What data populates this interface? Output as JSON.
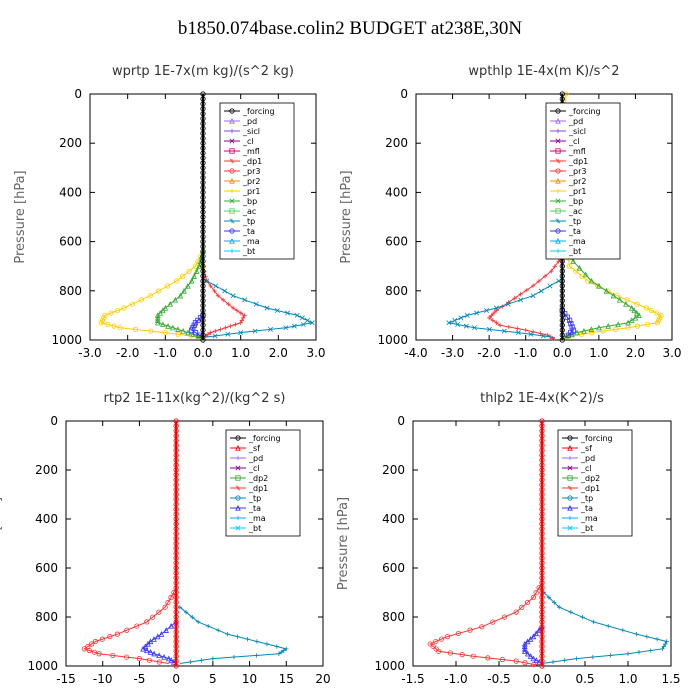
{
  "title": "b1850.074base.colin2  BUDGET at238E,30N",
  "colors": {
    "_forcing": "#000000",
    "_sf": "#ff0000",
    "_pd": "#9966ff",
    "_sicl": "#8844cc",
    "_cl": "#880088",
    "_mfl": "#cc0066",
    "_dp2": "#33aa33",
    "_dp1": "#ff3333",
    "_pr3": "#ff3333",
    "_pr2": "#ff8800",
    "_pr1": "#ffcc00",
    "_bp": "#33aa33",
    "_ac": "#55cc55",
    "_tp": "#0088bb",
    "_ta": "#3333ff",
    "_ma": "#00aaff",
    "_bt": "#00ccff"
  },
  "chart_data": [
    {
      "type": "line",
      "title": "wprtp   1E-7x(m kg)/(s^2 kg)",
      "ylabel": "Pressure [hPa]",
      "xlim": [
        -3.0,
        3.0
      ],
      "ylim": [
        1000,
        0
      ],
      "xticks": [
        "-3.0",
        "-2.0",
        "-1.0",
        "0.0",
        "1.0",
        "2.0",
        "3.0"
      ],
      "yticks": [
        "0",
        "200",
        "400",
        "600",
        "800",
        "1000"
      ],
      "legend": [
        "_forcing",
        "_pd",
        "_sicl",
        "_cl",
        "_mfl",
        "_dp1",
        "_pr3",
        "_pr2",
        "_pr1",
        "_bp",
        "_ac",
        "_tp",
        "_ta",
        "_ma",
        "_bt"
      ],
      "series": [
        {
          "name": "_pr1",
          "p": [
            640,
            700,
            760,
            820,
            870,
            900,
            930,
            950,
            970,
            990
          ],
          "x": [
            0,
            -0.2,
            -0.7,
            -1.4,
            -2.1,
            -2.6,
            -2.7,
            -2.2,
            -1.0,
            0
          ]
        },
        {
          "name": "_bp",
          "p": [
            640,
            700,
            760,
            820,
            870,
            900,
            930,
            950,
            970,
            990
          ],
          "x": [
            0,
            -0.1,
            -0.3,
            -0.6,
            -1.0,
            -1.2,
            -1.2,
            -0.8,
            -0.4,
            0
          ]
        },
        {
          "name": "_dp1",
          "p": [
            700,
            760,
            820,
            870,
            900,
            930,
            950,
            970,
            990
          ],
          "x": [
            0,
            0.1,
            0.4,
            0.8,
            1.1,
            1.0,
            0.6,
            0.2,
            0
          ]
        },
        {
          "name": "_tp",
          "p": [
            760,
            820,
            870,
            900,
            930,
            950,
            970,
            990
          ],
          "x": [
            0.1,
            0.8,
            1.7,
            2.5,
            2.9,
            2.2,
            1.0,
            0
          ]
        },
        {
          "name": "_ta",
          "p": [
            900,
            930,
            960,
            990
          ],
          "x": [
            0,
            -0.2,
            -0.3,
            0
          ]
        },
        {
          "name": "_forcing",
          "p": [
            0,
            200,
            400,
            600,
            800,
            1000
          ],
          "x": [
            0,
            0,
            0,
            0,
            0,
            0
          ]
        }
      ]
    },
    {
      "type": "line",
      "title": "wpthlp   1E-4x(m K)/s^2",
      "ylabel": "Pressure [hPa]",
      "xlim": [
        -4.0,
        3.0
      ],
      "ylim": [
        1000,
        0
      ],
      "xticks": [
        "-4.0",
        "-3.0",
        "-2.0",
        "-1.0",
        "0.0",
        "1.0",
        "2.0",
        "3.0"
      ],
      "yticks": [
        "0",
        "200",
        "400",
        "600",
        "800",
        "1000"
      ],
      "legend": [
        "_forcing",
        "_pd",
        "_sicl",
        "_cl",
        "_mfl",
        "_dp1",
        "_pr3",
        "_pr2",
        "_pr1",
        "_bp",
        "_ac",
        "_tp",
        "_ta",
        "_ma",
        "_bt"
      ],
      "series": [
        {
          "name": "_pr1",
          "p": [
            0,
            300,
            600,
            700,
            760,
            820,
            870,
            900,
            930,
            950,
            970,
            990
          ],
          "x": [
            0.1,
            0.05,
            0.1,
            0.2,
            0.7,
            1.5,
            2.3,
            2.7,
            2.6,
            1.8,
            0.8,
            0
          ]
        },
        {
          "name": "_bp",
          "p": [
            600,
            680,
            760,
            820,
            870,
            900,
            930,
            950,
            970,
            990
          ],
          "x": [
            0,
            0.3,
            0.8,
            1.4,
            1.9,
            2.1,
            1.8,
            1.0,
            0.4,
            0
          ]
        },
        {
          "name": "_dp1",
          "p": [
            660,
            720,
            780,
            830,
            880,
            910,
            940,
            960,
            980,
            1000
          ],
          "x": [
            0,
            -0.3,
            -0.8,
            -1.3,
            -1.8,
            -2.0,
            -1.7,
            -1.0,
            -0.4,
            -0.2
          ]
        },
        {
          "name": "_tp",
          "p": [
            760,
            820,
            870,
            900,
            930,
            950,
            970,
            990
          ],
          "x": [
            -0.1,
            -0.8,
            -1.8,
            -2.6,
            -3.1,
            -2.4,
            -1.2,
            -0.2
          ]
        },
        {
          "name": "_ta",
          "p": [
            880,
            920,
            960,
            990
          ],
          "x": [
            0,
            0.2,
            0.3,
            0.1
          ]
        },
        {
          "name": "_forcing",
          "p": [
            0,
            200,
            400,
            600,
            800,
            1000
          ],
          "x": [
            0,
            0,
            0,
            0,
            0,
            0
          ]
        }
      ]
    },
    {
      "type": "line",
      "title": "rtp2   1E-11x(kg^2)/(kg^2 s)",
      "ylabel": "Pressure [hPa]",
      "xlim": [
        -15,
        20
      ],
      "ylim": [
        1000,
        0
      ],
      "xticks": [
        "-15",
        "-10",
        "-5",
        "0",
        "5",
        "10",
        "15",
        "20"
      ],
      "yticks": [
        "0",
        "200",
        "400",
        "600",
        "800",
        "1000"
      ],
      "legend": [
        "_forcing",
        "_sf",
        "_pd",
        "_cl",
        "_dp2",
        "_dp1",
        "_tp",
        "_ta",
        "_ma",
        "_bt"
      ],
      "series": [
        {
          "name": "_dp1",
          "p": [
            700,
            760,
            820,
            870,
            900,
            930,
            950,
            970,
            990
          ],
          "x": [
            -0.3,
            -1.5,
            -4.0,
            -8.0,
            -11.0,
            -12.5,
            -10.5,
            -5.0,
            -1.0
          ]
        },
        {
          "name": "_ta",
          "p": [
            820,
            870,
            900,
            930,
            950,
            970,
            990
          ],
          "x": [
            0,
            -2.0,
            -3.5,
            -4.5,
            -3.0,
            -1.0,
            0
          ]
        },
        {
          "name": "_tp",
          "p": [
            760,
            820,
            870,
            900,
            930,
            950,
            970,
            990
          ],
          "x": [
            0.5,
            3.0,
            7.0,
            11.0,
            15.0,
            14.0,
            5.0,
            0.5
          ]
        },
        {
          "name": "_sf",
          "p": [
            0,
            200,
            400,
            600,
            800,
            1000
          ],
          "x": [
            0,
            0,
            0,
            0,
            0,
            0
          ]
        }
      ]
    },
    {
      "type": "line",
      "title": "thlp2   1E-4x(K^2)/s",
      "ylabel": "Pressure [hPa]",
      "xlim": [
        -1.5,
        1.5
      ],
      "ylim": [
        1000,
        0
      ],
      "xticks": [
        "-1.5",
        "-1.0",
        "-0.5",
        "0.0",
        "0.5",
        "1.0",
        "1.5"
      ],
      "yticks": [
        "0",
        "200",
        "400",
        "600",
        "800",
        "1000"
      ],
      "legend": [
        "_forcing",
        "_sf",
        "_pd",
        "_cl",
        "_dp2",
        "_dp1",
        "_tp",
        "_ta",
        "_ma",
        "_bt"
      ],
      "series": [
        {
          "name": "_dp1",
          "p": [
            660,
            720,
            780,
            840,
            880,
            910,
            940,
            960,
            980,
            1000
          ],
          "x": [
            0,
            -0.1,
            -0.3,
            -0.7,
            -1.1,
            -1.3,
            -1.2,
            -0.8,
            -0.3,
            0
          ]
        },
        {
          "name": "_ta",
          "p": [
            840,
            880,
            910,
            940,
            970,
            990
          ],
          "x": [
            0,
            -0.1,
            -0.2,
            -0.2,
            -0.1,
            0
          ]
        },
        {
          "name": "_tp",
          "p": [
            700,
            760,
            820,
            870,
            900,
            930,
            950,
            970,
            990
          ],
          "x": [
            0.02,
            0.2,
            0.6,
            1.1,
            1.45,
            1.4,
            1.0,
            0.4,
            0
          ]
        },
        {
          "name": "_sf",
          "p": [
            0,
            200,
            400,
            600,
            800,
            1000
          ],
          "x": [
            0,
            0,
            0,
            0,
            0,
            0
          ]
        }
      ]
    }
  ]
}
